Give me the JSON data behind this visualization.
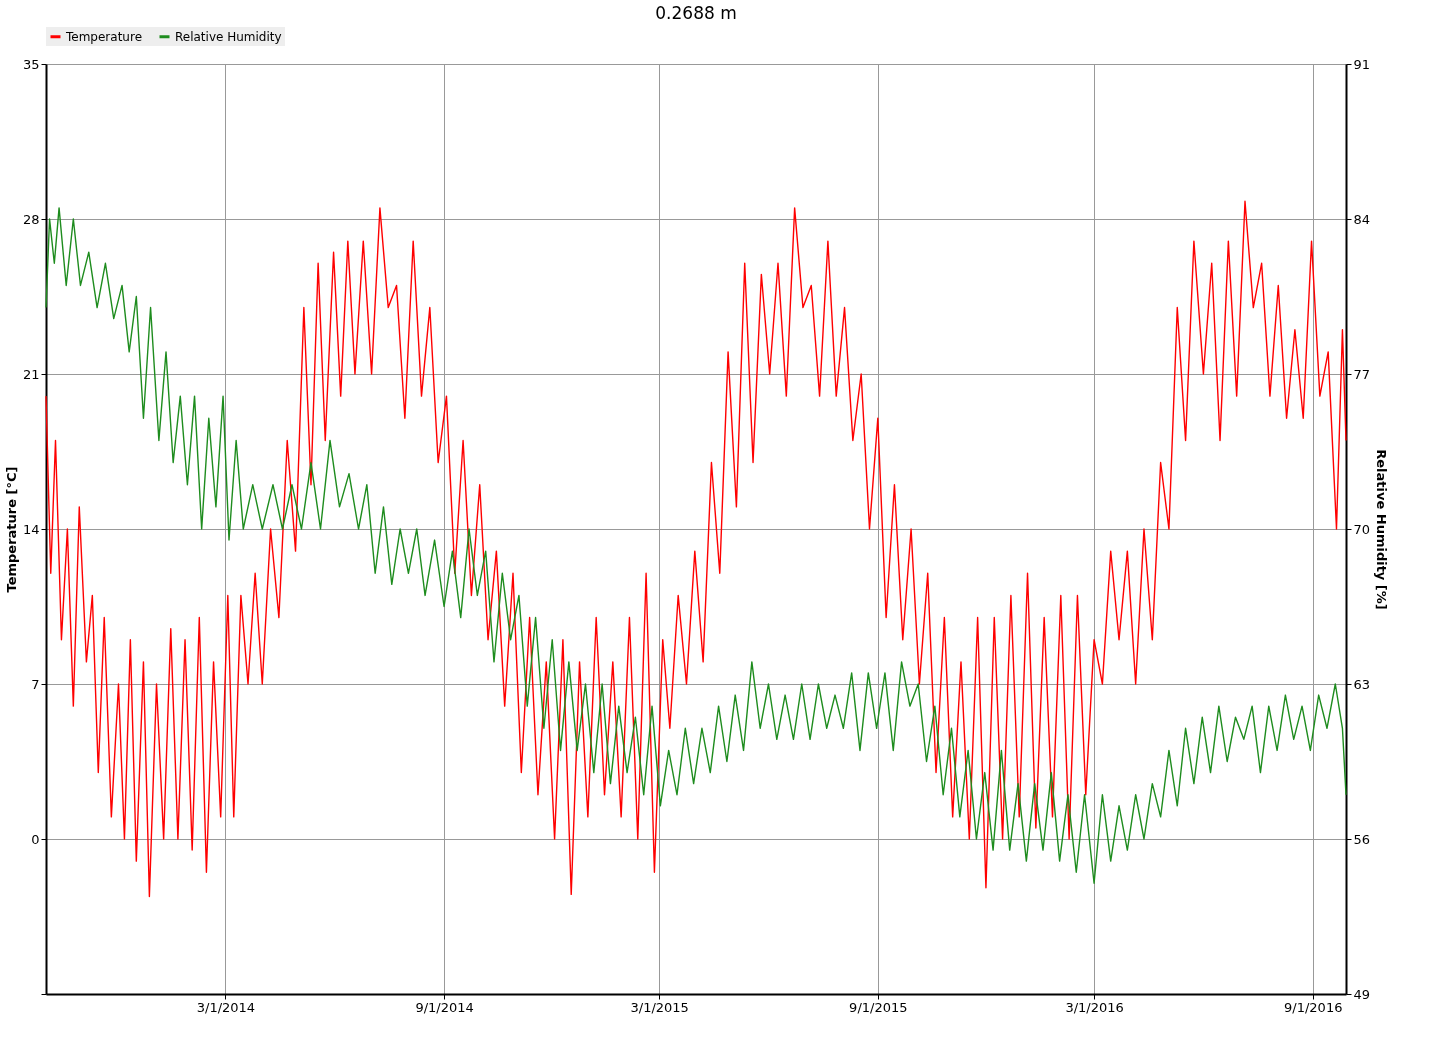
{
  "chart_data": {
    "type": "line",
    "title": "0.2688 m",
    "ylabel": "Temperature [°C]",
    "y2label": "Relative Humidity [%]",
    "xlim": [
      "2013-10-01",
      "2016-09-29"
    ],
    "xticks": [
      {
        "value": "2014-03-01",
        "label": "3/1/2014"
      },
      {
        "value": "2014-09-01",
        "label": "9/1/2014"
      },
      {
        "value": "2015-03-01",
        "label": "3/1/2015"
      },
      {
        "value": "2015-09-01",
        "label": "9/1/2015"
      },
      {
        "value": "2016-03-01",
        "label": "3/1/2016"
      },
      {
        "value": "2016-09-01",
        "label": "9/1/2016"
      }
    ],
    "ylim": [
      -7,
      35
    ],
    "yticks": [
      {
        "value": -7,
        "label": null
      },
      0,
      7,
      14,
      21,
      28,
      35
    ],
    "y2lim": [
      49,
      91
    ],
    "y2ticks": [
      49,
      56,
      63,
      70,
      77,
      84,
      91
    ],
    "grid": true,
    "legend": "top",
    "series": [
      {
        "name": "Temperature",
        "color": "#ff0000",
        "x": [
          "2013-10-01",
          "2013-10-05",
          "2013-10-09",
          "2013-10-14",
          "2013-10-19",
          "2013-10-24",
          "2013-10-29",
          "2013-11-04",
          "2013-11-09",
          "2013-11-14",
          "2013-11-19",
          "2013-11-25",
          "2013-12-01",
          "2013-12-06",
          "2013-12-11",
          "2013-12-16",
          "2013-12-22",
          "2013-12-27",
          "2014-01-02",
          "2014-01-08",
          "2014-01-14",
          "2014-01-20",
          "2014-01-26",
          "2014-02-01",
          "2014-02-07",
          "2014-02-13",
          "2014-02-19",
          "2014-02-25",
          "2014-03-03",
          "2014-03-08",
          "2014-03-14",
          "2014-03-20",
          "2014-03-26",
          "2014-04-01",
          "2014-04-08",
          "2014-04-15",
          "2014-04-22",
          "2014-04-29",
          "2014-05-06",
          "2014-05-12",
          "2014-05-18",
          "2014-05-24",
          "2014-05-31",
          "2014-06-06",
          "2014-06-12",
          "2014-06-18",
          "2014-06-25",
          "2014-07-02",
          "2014-07-09",
          "2014-07-16",
          "2014-07-23",
          "2014-07-30",
          "2014-08-06",
          "2014-08-13",
          "2014-08-20",
          "2014-08-27",
          "2014-09-03",
          "2014-09-10",
          "2014-09-17",
          "2014-09-24",
          "2014-10-01",
          "2014-10-08",
          "2014-10-15",
          "2014-10-22",
          "2014-10-29",
          "2014-11-05",
          "2014-11-12",
          "2014-11-19",
          "2014-11-26",
          "2014-12-03",
          "2014-12-10",
          "2014-12-17",
          "2014-12-24",
          "2014-12-31",
          "2015-01-07",
          "2015-01-14",
          "2015-01-21",
          "2015-01-28",
          "2015-02-04",
          "2015-02-11",
          "2015-02-18",
          "2015-02-25",
          "2015-03-04",
          "2015-03-10",
          "2015-03-17",
          "2015-03-24",
          "2015-03-31",
          "2015-04-07",
          "2015-04-14",
          "2015-04-21",
          "2015-04-28",
          "2015-05-05",
          "2015-05-12",
          "2015-05-19",
          "2015-05-26",
          "2015-06-02",
          "2015-06-09",
          "2015-06-16",
          "2015-06-23",
          "2015-06-30",
          "2015-07-07",
          "2015-07-14",
          "2015-07-21",
          "2015-07-28",
          "2015-08-04",
          "2015-08-11",
          "2015-08-18",
          "2015-08-25",
          "2015-09-01",
          "2015-09-08",
          "2015-09-15",
          "2015-09-22",
          "2015-09-29",
          "2015-10-06",
          "2015-10-13",
          "2015-10-20",
          "2015-10-27",
          "2015-11-03",
          "2015-11-10",
          "2015-11-17",
          "2015-11-24",
          "2015-12-01",
          "2015-12-08",
          "2015-12-15",
          "2015-12-22",
          "2015-12-29",
          "2016-01-05",
          "2016-01-12",
          "2016-01-19",
          "2016-01-26",
          "2016-02-02",
          "2016-02-09",
          "2016-02-16",
          "2016-02-23",
          "2016-03-01",
          "2016-03-08",
          "2016-03-15",
          "2016-03-22",
          "2016-03-29",
          "2016-04-05",
          "2016-04-12",
          "2016-04-19",
          "2016-04-26",
          "2016-05-03",
          "2016-05-10",
          "2016-05-17",
          "2016-05-24",
          "2016-06-01",
          "2016-06-08",
          "2016-06-15",
          "2016-06-22",
          "2016-06-29",
          "2016-07-06",
          "2016-07-13",
          "2016-07-20",
          "2016-07-27",
          "2016-08-03",
          "2016-08-10",
          "2016-08-17",
          "2016-08-24",
          "2016-08-31",
          "2016-09-07",
          "2016-09-14",
          "2016-09-21",
          "2016-09-26",
          "2016-09-29"
        ],
        "values": [
          20,
          12,
          18,
          9,
          14,
          6,
          15,
          8,
          11,
          3,
          10,
          1,
          7,
          0,
          9,
          -1,
          8,
          -2.6,
          7,
          0,
          9.5,
          0,
          9,
          -0.5,
          10,
          -1.5,
          8,
          1,
          11,
          1,
          11,
          7,
          12,
          7,
          14,
          10,
          18,
          13,
          24,
          16,
          26,
          18,
          26.5,
          20,
          27,
          21,
          27,
          21,
          28.5,
          24,
          25,
          19,
          27,
          20,
          24,
          17,
          20,
          12,
          18,
          11,
          16,
          9,
          13,
          6,
          12,
          3,
          10,
          2,
          8,
          0,
          9,
          -2.5,
          8,
          1,
          10,
          2,
          8,
          1,
          10,
          0,
          12,
          -1.5,
          9,
          5,
          11,
          7,
          13,
          8,
          17,
          12,
          22,
          15,
          26,
          17,
          25.5,
          21,
          26,
          20,
          28.5,
          24,
          25,
          20,
          27,
          20,
          24,
          18,
          21,
          14,
          19,
          10,
          16,
          9,
          14,
          7,
          12,
          3,
          10,
          1,
          8,
          0,
          10,
          -2.2,
          10,
          0,
          11,
          1,
          12,
          0.5,
          10,
          1,
          11,
          0,
          11,
          2,
          9,
          7,
          13,
          9,
          13,
          7,
          14,
          9,
          17,
          14,
          24,
          18,
          27,
          21,
          26,
          18,
          27,
          20,
          28.8,
          24,
          26,
          20,
          25,
          19,
          23,
          19,
          27,
          20,
          22,
          14,
          23,
          18
        ]
      },
      {
        "name": "Relative Humidity",
        "color": "#1e8c1e",
        "axis": "y2",
        "x": [
          "2013-10-01",
          "2013-10-04",
          "2013-10-08",
          "2013-10-12",
          "2013-10-18",
          "2013-10-24",
          "2013-10-30",
          "2013-11-06",
          "2013-11-13",
          "2013-11-20",
          "2013-11-27",
          "2013-12-04",
          "2013-12-10",
          "2013-12-16",
          "2013-12-22",
          "2013-12-28",
          "2014-01-04",
          "2014-01-10",
          "2014-01-16",
          "2014-01-22",
          "2014-01-28",
          "2014-02-03",
          "2014-02-09",
          "2014-02-15",
          "2014-02-21",
          "2014-02-27",
          "2014-03-04",
          "2014-03-10",
          "2014-03-16",
          "2014-03-24",
          "2014-04-01",
          "2014-04-10",
          "2014-04-18",
          "2014-04-26",
          "2014-05-04",
          "2014-05-12",
          "2014-05-20",
          "2014-05-28",
          "2014-06-05",
          "2014-06-13",
          "2014-06-21",
          "2014-06-28",
          "2014-07-05",
          "2014-07-12",
          "2014-07-19",
          "2014-07-26",
          "2014-08-02",
          "2014-08-09",
          "2014-08-16",
          "2014-08-24",
          "2014-09-01",
          "2014-09-08",
          "2014-09-15",
          "2014-09-22",
          "2014-09-29",
          "2014-10-06",
          "2014-10-13",
          "2014-10-20",
          "2014-10-27",
          "2014-11-03",
          "2014-11-10",
          "2014-11-17",
          "2014-11-24",
          "2014-12-01",
          "2014-12-08",
          "2014-12-15",
          "2014-12-22",
          "2014-12-29",
          "2015-01-05",
          "2015-01-12",
          "2015-01-19",
          "2015-01-26",
          "2015-02-02",
          "2015-02-09",
          "2015-02-16",
          "2015-02-23",
          "2015-03-02",
          "2015-03-09",
          "2015-03-16",
          "2015-03-23",
          "2015-03-30",
          "2015-04-06",
          "2015-04-13",
          "2015-04-20",
          "2015-04-27",
          "2015-05-04",
          "2015-05-11",
          "2015-05-18",
          "2015-05-25",
          "2015-06-01",
          "2015-06-08",
          "2015-06-15",
          "2015-06-22",
          "2015-06-29",
          "2015-07-06",
          "2015-07-13",
          "2015-07-20",
          "2015-07-27",
          "2015-08-03",
          "2015-08-10",
          "2015-08-17",
          "2015-08-24",
          "2015-08-31",
          "2015-09-07",
          "2015-09-14",
          "2015-09-21",
          "2015-09-28",
          "2015-10-05",
          "2015-10-12",
          "2015-10-19",
          "2015-10-26",
          "2015-11-02",
          "2015-11-09",
          "2015-11-16",
          "2015-11-23",
          "2015-11-30",
          "2015-12-07",
          "2015-12-14",
          "2015-12-21",
          "2015-12-28",
          "2016-01-04",
          "2016-01-11",
          "2016-01-18",
          "2016-01-25",
          "2016-02-01",
          "2016-02-08",
          "2016-02-15",
          "2016-02-22",
          "2016-03-01",
          "2016-03-08",
          "2016-03-15",
          "2016-03-22",
          "2016-03-29",
          "2016-04-05",
          "2016-04-12",
          "2016-04-19",
          "2016-04-26",
          "2016-05-03",
          "2016-05-10",
          "2016-05-17",
          "2016-05-24",
          "2016-05-31",
          "2016-06-07",
          "2016-06-14",
          "2016-06-21",
          "2016-06-28",
          "2016-07-05",
          "2016-07-12",
          "2016-07-19",
          "2016-07-26",
          "2016-08-02",
          "2016-08-09",
          "2016-08-16",
          "2016-08-23",
          "2016-08-30",
          "2016-09-06",
          "2016-09-13",
          "2016-09-20",
          "2016-09-26",
          "2016-09-29"
        ],
        "values": [
          80,
          84,
          82,
          84.5,
          81,
          84,
          81,
          82.5,
          80,
          82,
          79.5,
          81,
          78,
          80.5,
          75,
          80,
          74,
          78,
          73,
          76,
          72,
          76,
          70,
          75,
          71,
          76,
          69.5,
          74,
          70,
          72,
          70,
          72,
          70,
          72,
          70,
          73,
          70,
          74,
          71,
          72.5,
          70,
          72,
          68,
          71,
          67.5,
          70,
          68,
          70,
          67,
          69.5,
          66.5,
          69,
          66,
          70,
          67,
          69,
          64,
          68,
          65,
          67,
          62,
          66,
          61,
          65,
          60,
          64,
          60,
          63,
          59,
          63,
          58.5,
          62,
          59,
          61.5,
          58,
          62,
          57.5,
          60,
          58,
          61,
          58.5,
          61,
          59,
          62,
          59.5,
          62.5,
          60,
          64,
          61,
          63,
          60.5,
          62.5,
          60.5,
          63,
          60.5,
          63,
          61,
          62.5,
          61,
          63.5,
          60,
          63.5,
          61,
          63.5,
          60,
          64,
          62,
          63,
          59.5,
          62,
          58,
          61,
          57,
          60,
          56,
          59,
          55.5,
          60,
          55.5,
          58.5,
          55,
          58.5,
          55.5,
          59,
          55,
          58,
          54.5,
          58,
          54,
          58,
          55,
          57.5,
          55.5,
          58,
          56,
          58.5,
          57,
          60,
          57.5,
          61,
          58.5,
          61.5,
          59,
          62,
          59.5,
          61.5,
          60.5,
          62,
          59,
          62,
          60,
          62.5,
          60.5,
          62,
          60,
          62.5,
          61,
          63,
          61,
          58
        ]
      }
    ]
  }
}
